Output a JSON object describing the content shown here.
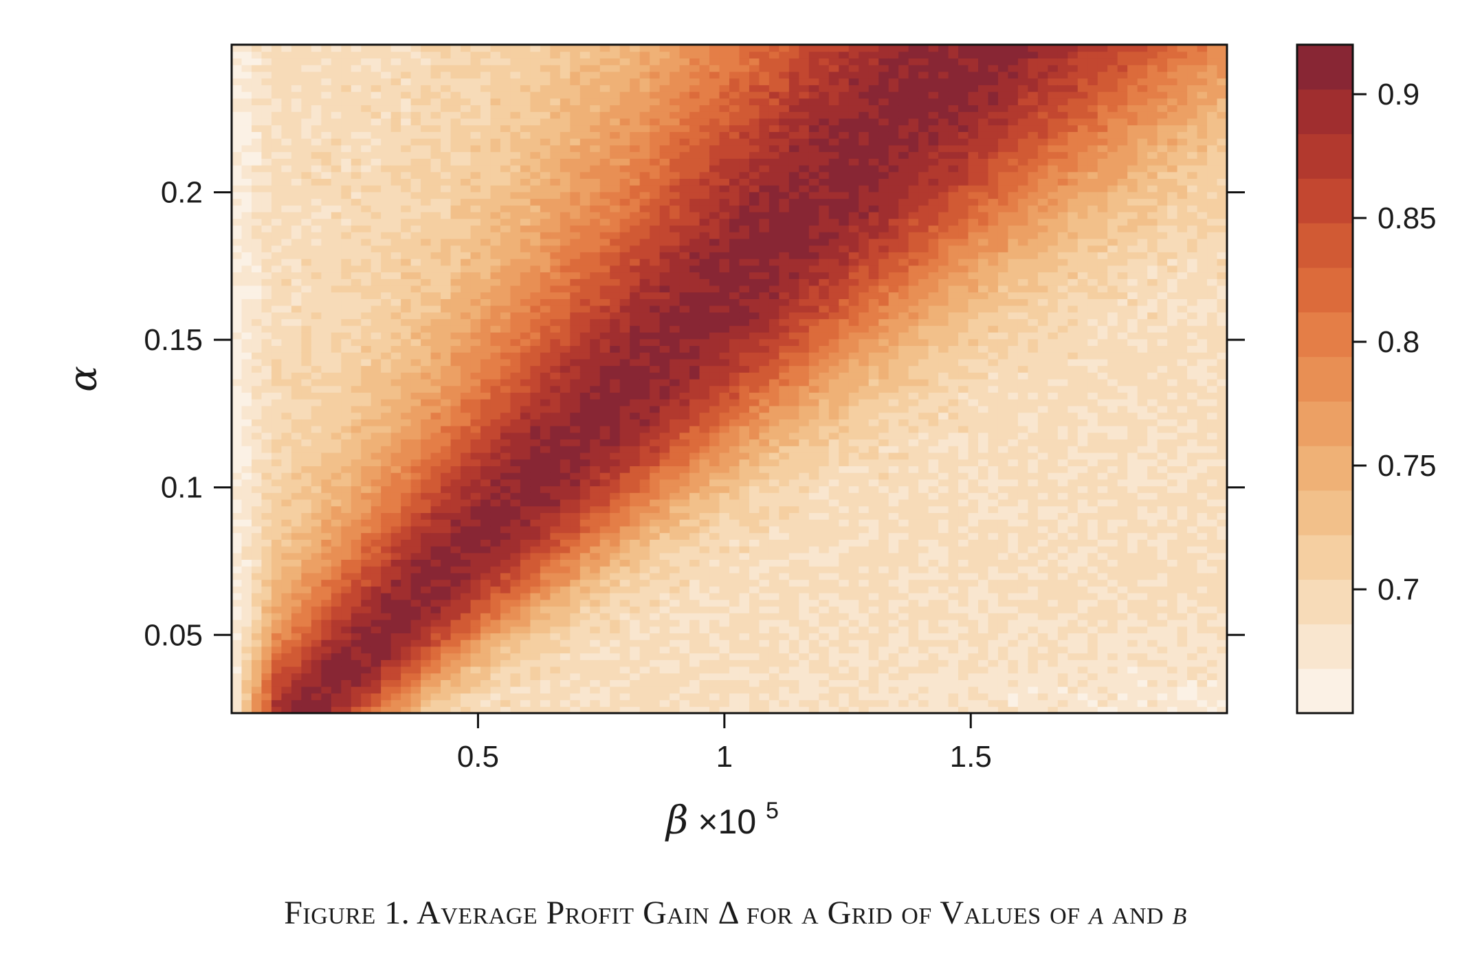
{
  "caption": {
    "prefix": "Figure 1. Average Profit Gain Δ for a Grid of Values of ",
    "alpha": "α",
    "middle": " and ",
    "beta": "β"
  },
  "chart_data": {
    "type": "heatmap",
    "title": "",
    "xlabel": {
      "symbol": "β",
      "times": "×10",
      "exponent": "5"
    },
    "ylabel": "α",
    "xlim": [
      0.0,
      2.02
    ],
    "ylim": [
      0.0235,
      0.25
    ],
    "x_ticks": [
      0.5,
      1,
      1.5
    ],
    "x_tick_labels": [
      "0.5",
      "1",
      "1.5"
    ],
    "y_ticks": [
      0.05,
      0.1,
      0.15,
      0.2
    ],
    "y_tick_labels": [
      "0.05",
      "0.1",
      "0.15",
      "0.2"
    ],
    "grid_resolution": {
      "nx": 100,
      "ny": 100
    },
    "value_range": [
      0.65,
      0.92
    ],
    "colorbar": {
      "ticks": [
        0.7,
        0.75,
        0.8,
        0.85,
        0.9
      ],
      "tick_labels": [
        "0.7",
        "0.75",
        "0.8",
        "0.85",
        "0.9"
      ],
      "levels": [
        0.65,
        0.668,
        0.686,
        0.704,
        0.722,
        0.74,
        0.758,
        0.776,
        0.794,
        0.812,
        0.83,
        0.848,
        0.866,
        0.884,
        0.902,
        0.92
      ],
      "colors": [
        "#fbf1e5",
        "#f9e6cf",
        "#f7dbb8",
        "#f5cfa1",
        "#f2c08a",
        "#efb176",
        "#eca064",
        "#e88f54",
        "#e47e47",
        "#dc6b3b",
        "#d15a34",
        "#c34730",
        "#b2392e",
        "#a02e2f",
        "#882634"
      ]
    },
    "sampled_values": [
      {
        "x": 0.05,
        "y": 0.05,
        "value": 0.9
      },
      {
        "x": 0.3,
        "y": 0.08,
        "value": 0.87
      },
      {
        "x": 0.55,
        "y": 0.14,
        "value": 0.85
      },
      {
        "x": 1.0,
        "y": 0.2,
        "value": 0.82
      },
      {
        "x": 1.5,
        "y": 0.15,
        "value": 0.79
      },
      {
        "x": 1.5,
        "y": 0.05,
        "value": 0.72
      },
      {
        "x": 1.9,
        "y": 0.03,
        "value": 0.68
      },
      {
        "x": 0.01,
        "y": 0.2,
        "value": 0.66
      }
    ],
    "grid": false,
    "legend": "colorbar-right"
  }
}
